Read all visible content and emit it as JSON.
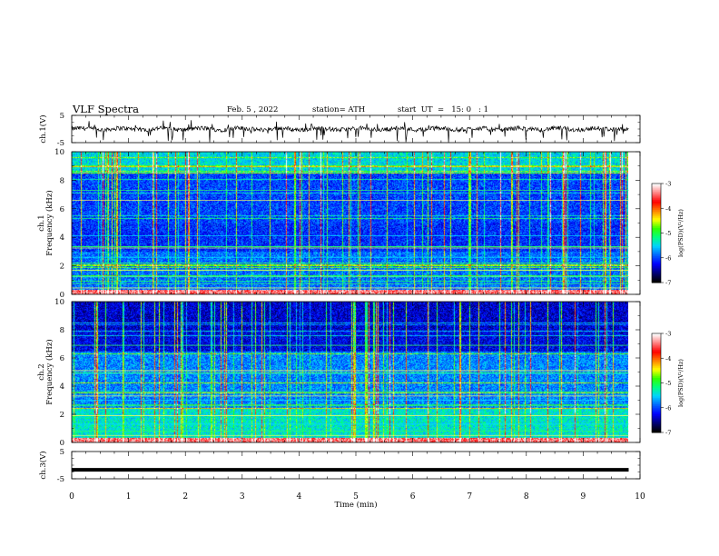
{
  "header": {
    "title": "VLF  Spectra",
    "date": "Feb. 5  , 2022",
    "station": "station= ATH",
    "start": "start  UT  =   15: 0   : 1"
  },
  "chart_data": [
    {
      "type": "line",
      "ylabel": "ch.1(V)",
      "ylim": [
        -5,
        5
      ],
      "yticks": [
        "5",
        "-5"
      ],
      "description_values": {
        "baseline": 0,
        "noise_amplitude": 1.2,
        "spikes_max": -4.8
      }
    },
    {
      "type": "heatmap",
      "ylabel": "ch.1\nFrequency  (kHz)",
      "ylim": [
        0,
        10
      ],
      "yticks": [
        "0",
        "2",
        "4",
        "6",
        "8",
        "10"
      ],
      "xlim": [
        0,
        9.8
      ],
      "colorbar": {
        "label": "log(PSD)(V²/Hz)",
        "range": [
          -7,
          -3
        ],
        "ticks": [
          "-3",
          "-4",
          "-5",
          "-6",
          "-7"
        ]
      }
    },
    {
      "type": "heatmap",
      "ylabel": "ch.2\nFrequency  (kHz)",
      "ylim": [
        0,
        10
      ],
      "yticks": [
        "0",
        "2",
        "4",
        "6",
        "8",
        "10"
      ],
      "xlim": [
        0,
        9.8
      ],
      "colorbar": {
        "label": "log(PSD)(V²/Hz)",
        "range": [
          -7,
          -3
        ],
        "ticks": [
          "-3",
          "-4",
          "-5",
          "-6",
          "-7"
        ]
      }
    },
    {
      "type": "line",
      "ylabel": "ch.3(V)",
      "ylim": [
        -5,
        5
      ],
      "yticks": [
        "5",
        "-5"
      ],
      "values_constant": -1.7
    }
  ],
  "xaxis": {
    "label": "Time  (min)",
    "range": [
      0,
      10
    ],
    "ticks": [
      "0",
      "1",
      "2",
      "3",
      "4",
      "5",
      "6",
      "7",
      "8",
      "9",
      "10"
    ]
  },
  "colors": {
    "cmap": [
      "#000000",
      "#00007a",
      "#0000ff",
      "#0066ff",
      "#00d2ff",
      "#00ff80",
      "#33ff00",
      "#ffff00",
      "#ff8000",
      "#ff0000",
      "#ff8080",
      "#ffffff"
    ]
  }
}
